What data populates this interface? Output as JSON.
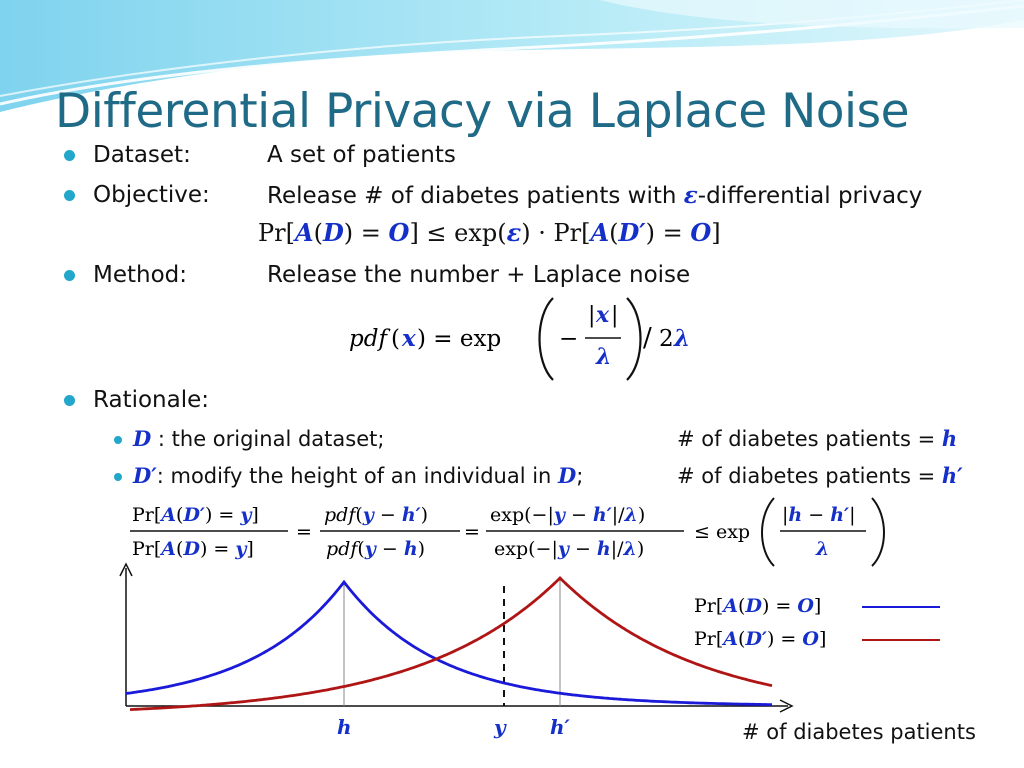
{
  "title": "Differential Privacy via Laplace Noise",
  "bullets": {
    "dataset": {
      "label": "Dataset:",
      "text": "A set of patients"
    },
    "objective": {
      "label": "Objective:",
      "text_before": "Release # of diabetes patients with ",
      "epsilon": "ε",
      "text_after": "-differential privacy"
    },
    "method": {
      "label": "Method:",
      "text": "Release the number + Laplace noise"
    },
    "rationale": {
      "label": "Rationale:"
    }
  },
  "sub_bullets": {
    "d": {
      "var": "D",
      "text": " : the original dataset;",
      "right": "# of diabetes patients = ",
      "right_var": "h"
    },
    "dprime": {
      "var": "D′",
      "text_before": ": modify the height of an individual in ",
      "var2": "D",
      "text_after": ";",
      "right": "# of diabetes patients = ",
      "right_var": "h′"
    }
  },
  "formulas": {
    "objective": "Pr[A(D) = O] ≤ exp(ε) · Pr[A(D′) = O]",
    "pdf": "pdf(x) = exp(−|x|/λ)/2λ",
    "ratio": "Pr[A(D′) = y] / Pr[A(D) = y] = pdf(y − h′)/pdf(y − h) = exp(−|y − h′|/λ)/exp(−|y − h|/λ) ≤ exp(|h − h′|/λ)"
  },
  "chart_data": {
    "type": "line",
    "xlabel": "# of diabetes patients",
    "x_markers": [
      "h",
      "y",
      "h′"
    ],
    "series": [
      {
        "name": "Pr[A(D) = O]",
        "color": "#1a1ad8",
        "peak_at": "h"
      },
      {
        "name": "Pr[A(D′) = O]",
        "color": "#b01515",
        "peak_at": "h′"
      }
    ],
    "dashed_line_at": "y"
  },
  "colors": {
    "title": "#1f6a86",
    "bullet": "#22a6c9",
    "variable": "#1530c8"
  }
}
